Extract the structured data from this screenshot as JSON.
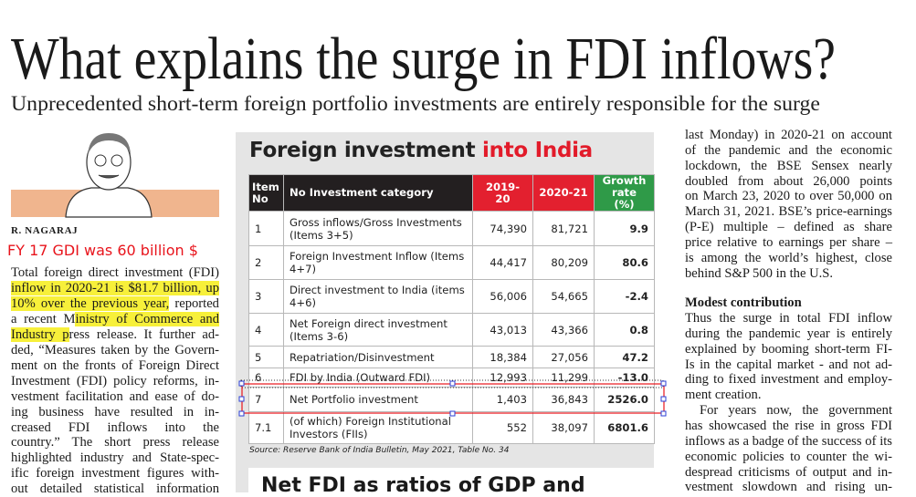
{
  "headline": "What explains the surge in FDI inflows?",
  "subheadline": "Unprecedented short-term foreign portfolio investments are entirely responsible for the surge",
  "byline": "R. NAGARAJ",
  "annotation": "FY 17 GDI was 60 billion $",
  "left_column": [
    [
      {
        "text": "Total foreign direct investment (FDI)"
      }
    ],
    [
      {
        "text": "inflow in 2020-21 is $81.7 billion, up",
        "highlight": true
      }
    ],
    [
      {
        "text": "10% over the previous year,",
        "highlight": true
      },
      {
        "text": " reported"
      }
    ],
    [
      {
        "text": "a recent M"
      },
      {
        "text": "inistry of Commerce and",
        "highlight": true
      }
    ],
    [
      {
        "text": "Industry p",
        "highlight": true
      },
      {
        "text": "ress release. It further ad-"
      }
    ],
    [
      {
        "text": "ded, “Measures taken by the Govern-"
      }
    ],
    [
      {
        "text": "ment on the fronts of Foreign Direct"
      }
    ],
    [
      {
        "text": "Investment (FDI) policy reforms, in-"
      }
    ],
    [
      {
        "text": "vestment facilitation and ease of do-"
      }
    ],
    [
      {
        "text": "ing business have resulted in in-"
      }
    ],
    [
      {
        "text": "creased FDI inflows into the"
      }
    ],
    [
      {
        "text": "country.” The short press release"
      }
    ],
    [
      {
        "text": "highlighted industry and State-spec-"
      }
    ],
    [
      {
        "text": "ific foreign investment figures with-"
      }
    ],
    [
      {
        "text": "out detailed statistical information"
      }
    ]
  ],
  "graphic": {
    "title": "Foreign investment",
    "title_accent": "into India",
    "table": {
      "header": [
        "Item No",
        "No Investment category",
        "2019-20",
        "2020-21",
        "Growth rate (%)"
      ],
      "rows": [
        [
          "1",
          "Gross inflows/Gross Investments (Items 3+5)",
          "74,390",
          "81,721",
          "9.9"
        ],
        [
          "2",
          "Foreign Investment Inflow (Items 4+7)",
          "44,417",
          "80,209",
          "80.6"
        ],
        [
          "3",
          "Direct investment to India (items 4+6)",
          "56,006",
          "54,665",
          "-2.4"
        ],
        [
          "4",
          "Net Foreign direct investment (Items 3-6)",
          "43,013",
          "43,366",
          "0.8"
        ],
        [
          "5",
          "Repatriation/Disinvestment",
          "18,384",
          "27,056",
          "47.2"
        ],
        [
          "6",
          "FDI by India (Outward FDI)",
          "12,993",
          "11,299",
          "-13.0"
        ],
        [
          "7",
          "Net Portfolio investment",
          "1,403",
          "36,843",
          "2526.0"
        ],
        [
          "7.1",
          "(of which) Foreign Institutional Investors (FIIs)",
          "552",
          "38,097",
          "6801.6"
        ]
      ]
    },
    "source": "Source: Reserve Bank of India Bulletin, May 2021, Table No. 34"
  },
  "next_graphic": {
    "title": "Net FDI as ratios of GDP and"
  },
  "right_column": {
    "top": [
      "last Monday) in 2020-21 on account",
      "of the pandemic and the economic",
      "lockdown, the BSE Sensex nearly",
      "doubled from about 26,000 points",
      "on March 23, 2020 to over 50,000 on",
      "March 31, 2021. BSE’s price-earnings",
      "(P-E) multiple – defined as share",
      "price relative to earnings per share –",
      "is among the world’s highest, close",
      "behind S&P 500 in the U.S."
    ],
    "heading": "Modest contribution",
    "bottom": [
      "Thus the surge in total FDI inflow",
      "during the pandemic year is entirely",
      "explained by booming short-term FI-",
      "Is in the capital market - and not ad-",
      "ding to fixed investment and employ-",
      "ment creation.",
      "For years now, the government",
      "has showcased the rise in gross FDI",
      "inflows as a badge of the success of its",
      "economic policies to counter the wi-",
      "despread criticisms of output and in-",
      "vestment slowdown and rising un-"
    ]
  }
}
